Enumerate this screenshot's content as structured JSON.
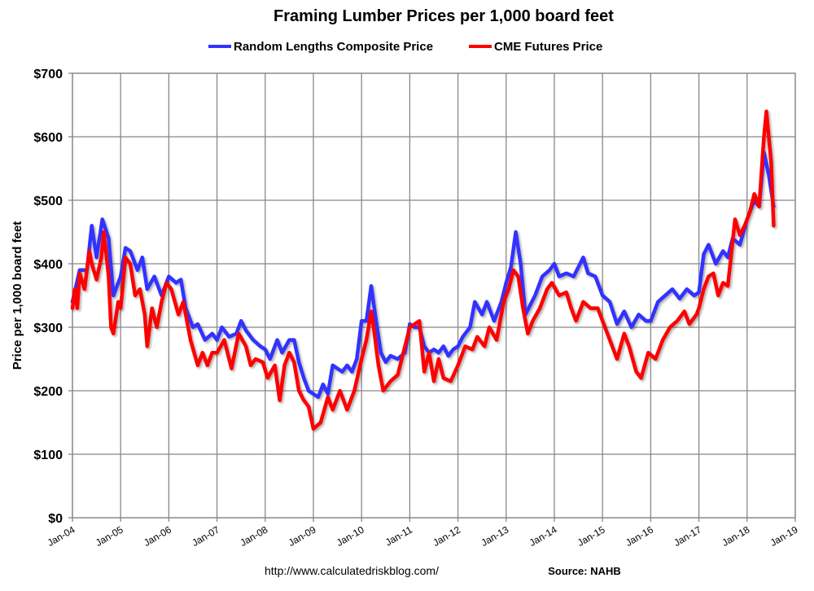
{
  "chart_data": {
    "type": "line",
    "title": "Framing Lumber Prices per 1,000 board feet",
    "xlabel": "",
    "ylabel": "Price per 1,000 board feet",
    "xlim": [
      2004,
      2019
    ],
    "ylim": [
      0,
      700
    ],
    "x_tick_labels": [
      "Jan-04",
      "Jan-05",
      "Jan-06",
      "Jan-07",
      "Jan-08",
      "Jan-09",
      "Jan-10",
      "Jan-11",
      "Jan-12",
      "Jan-13",
      "Jan-14",
      "Jan-15",
      "Jan-16",
      "Jan-17",
      "Jan-18",
      "Jan-19"
    ],
    "y_tick_labels": [
      "$0",
      "$100",
      "$200",
      "$300",
      "$400",
      "$500",
      "$600",
      "$700"
    ],
    "grid": true,
    "legend_position": "top",
    "series": [
      {
        "name": "Random Lengths Composite Price",
        "color": "#3333ff",
        "x": [
          2004.0,
          2004.15,
          2004.3,
          2004.4,
          2004.5,
          2004.62,
          2004.75,
          2004.85,
          2005.0,
          2005.1,
          2005.2,
          2005.35,
          2005.45,
          2005.55,
          2005.7,
          2005.85,
          2006.0,
          2006.15,
          2006.25,
          2006.35,
          2006.5,
          2006.6,
          2006.75,
          2006.9,
          2007.0,
          2007.1,
          2007.25,
          2007.4,
          2007.5,
          2007.6,
          2007.75,
          2007.9,
          2008.0,
          2008.1,
          2008.25,
          2008.35,
          2008.5,
          2008.6,
          2008.7,
          2008.8,
          2008.9,
          2009.0,
          2009.1,
          2009.2,
          2009.3,
          2009.4,
          2009.5,
          2009.6,
          2009.7,
          2009.8,
          2009.9,
          2010.0,
          2010.1,
          2010.2,
          2010.3,
          2010.4,
          2010.5,
          2010.6,
          2010.75,
          2010.9,
          2011.0,
          2011.1,
          2011.2,
          2011.3,
          2011.4,
          2011.5,
          2011.6,
          2011.7,
          2011.8,
          2011.9,
          2012.0,
          2012.1,
          2012.25,
          2012.35,
          2012.5,
          2012.6,
          2012.75,
          2012.9,
          2013.0,
          2013.1,
          2013.2,
          2013.3,
          2013.4,
          2013.5,
          2013.6,
          2013.75,
          2013.9,
          2014.0,
          2014.1,
          2014.25,
          2014.4,
          2014.5,
          2014.6,
          2014.7,
          2014.85,
          2015.0,
          2015.15,
          2015.3,
          2015.45,
          2015.6,
          2015.75,
          2015.9,
          2016.0,
          2016.15,
          2016.3,
          2016.45,
          2016.6,
          2016.75,
          2016.9,
          2017.0,
          2017.1,
          2017.2,
          2017.35,
          2017.5,
          2017.6,
          2017.7,
          2017.85,
          2018.0,
          2018.15,
          2018.25,
          2018.35,
          2018.45,
          2018.55
        ],
        "values": [
          340,
          390,
          390,
          460,
          410,
          470,
          440,
          350,
          380,
          425,
          420,
          390,
          410,
          360,
          380,
          350,
          380,
          370,
          375,
          330,
          300,
          305,
          280,
          290,
          280,
          300,
          285,
          290,
          310,
          295,
          280,
          270,
          265,
          250,
          280,
          260,
          280,
          280,
          245,
          220,
          200,
          195,
          190,
          210,
          195,
          240,
          235,
          230,
          240,
          230,
          250,
          310,
          310,
          365,
          310,
          260,
          245,
          255,
          250,
          260,
          305,
          300,
          300,
          270,
          260,
          265,
          260,
          270,
          255,
          265,
          270,
          285,
          300,
          340,
          320,
          340,
          310,
          340,
          370,
          395,
          450,
          400,
          320,
          335,
          350,
          380,
          390,
          400,
          380,
          385,
          380,
          395,
          410,
          385,
          380,
          350,
          340,
          305,
          325,
          300,
          320,
          310,
          310,
          340,
          350,
          360,
          345,
          360,
          350,
          355,
          415,
          430,
          400,
          420,
          410,
          440,
          430,
          470,
          500,
          490,
          575,
          540,
          490
        ]
      },
      {
        "name": "CME Futures Price",
        "color": "#ff0000",
        "x": [
          2004.0,
          2004.05,
          2004.1,
          2004.15,
          2004.25,
          2004.35,
          2004.4,
          2004.5,
          2004.6,
          2004.65,
          2004.75,
          2004.8,
          2004.85,
          2004.95,
          2005.0,
          2005.1,
          2005.2,
          2005.3,
          2005.4,
          2005.5,
          2005.55,
          2005.65,
          2005.75,
          2005.85,
          2005.95,
          2006.05,
          2006.2,
          2006.3,
          2006.45,
          2006.6,
          2006.7,
          2006.8,
          2006.9,
          2007.0,
          2007.15,
          2007.3,
          2007.45,
          2007.6,
          2007.7,
          2007.8,
          2007.95,
          2008.05,
          2008.2,
          2008.3,
          2008.4,
          2008.5,
          2008.6,
          2008.7,
          2008.8,
          2008.9,
          2009.0,
          2009.15,
          2009.3,
          2009.4,
          2009.55,
          2009.7,
          2009.85,
          2010.0,
          2010.1,
          2010.2,
          2010.25,
          2010.35,
          2010.45,
          2010.6,
          2010.75,
          2010.9,
          2011.0,
          2011.1,
          2011.2,
          2011.3,
          2011.4,
          2011.5,
          2011.6,
          2011.7,
          2011.85,
          2012.0,
          2012.15,
          2012.3,
          2012.4,
          2012.55,
          2012.65,
          2012.8,
          2012.95,
          2013.05,
          2013.15,
          2013.25,
          2013.35,
          2013.45,
          2013.55,
          2013.7,
          2013.85,
          2013.95,
          2014.1,
          2014.25,
          2014.35,
          2014.45,
          2014.6,
          2014.75,
          2014.9,
          2015.0,
          2015.15,
          2015.3,
          2015.45,
          2015.55,
          2015.7,
          2015.8,
          2015.95,
          2016.1,
          2016.25,
          2016.4,
          2016.55,
          2016.7,
          2016.8,
          2016.95,
          2017.0,
          2017.1,
          2017.2,
          2017.3,
          2017.4,
          2017.5,
          2017.6,
          2017.75,
          2017.85,
          2017.95,
          2018.05,
          2018.15,
          2018.25,
          2018.35,
          2018.4,
          2018.45,
          2018.5,
          2018.55
        ],
        "values": [
          330,
          360,
          330,
          385,
          360,
          420,
          400,
          375,
          410,
          450,
          380,
          300,
          290,
          340,
          330,
          410,
          400,
          350,
          360,
          320,
          270,
          330,
          300,
          340,
          370,
          360,
          320,
          340,
          280,
          240,
          260,
          240,
          260,
          260,
          280,
          235,
          290,
          270,
          240,
          250,
          245,
          220,
          240,
          185,
          240,
          260,
          245,
          200,
          185,
          175,
          140,
          150,
          190,
          170,
          200,
          170,
          200,
          250,
          280,
          325,
          300,
          240,
          200,
          215,
          225,
          270,
          300,
          305,
          310,
          230,
          260,
          215,
          250,
          220,
          215,
          240,
          270,
          265,
          285,
          270,
          300,
          280,
          340,
          360,
          390,
          380,
          330,
          290,
          310,
          330,
          360,
          370,
          350,
          355,
          330,
          310,
          340,
          330,
          330,
          310,
          280,
          250,
          290,
          270,
          230,
          220,
          260,
          250,
          280,
          300,
          310,
          325,
          305,
          320,
          330,
          360,
          380,
          385,
          350,
          370,
          365,
          470,
          445,
          460,
          480,
          510,
          490,
          600,
          640,
          600,
          560,
          460
        ]
      }
    ]
  },
  "footer": {
    "url": "http://www.calculatedriskblog.com/",
    "source": "Source: NAHB"
  }
}
